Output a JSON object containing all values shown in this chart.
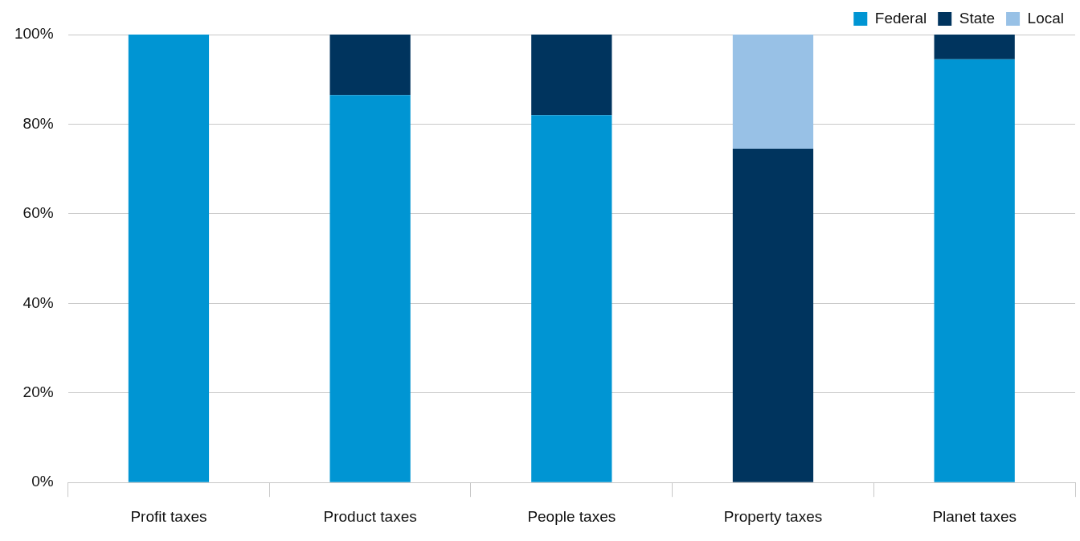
{
  "chart_data": {
    "type": "bar",
    "stacked": true,
    "categories": [
      "Profit taxes",
      "Product taxes",
      "People taxes",
      "Property taxes",
      "Planet taxes"
    ],
    "series": [
      {
        "name": "Federal",
        "color": "#0095d3",
        "values": [
          100,
          86.5,
          82,
          0,
          94.5
        ]
      },
      {
        "name": "State",
        "color": "#00345e",
        "values": [
          0,
          13.5,
          18,
          74.5,
          5.5
        ]
      },
      {
        "name": "Local",
        "color": "#98c1e6",
        "values": [
          0,
          0,
          0,
          25.5,
          0
        ]
      }
    ],
    "ylim": [
      0,
      100
    ],
    "yticks": [
      {
        "value": 0,
        "label": "0%"
      },
      {
        "value": 20,
        "label": "20%"
      },
      {
        "value": 40,
        "label": "40%"
      },
      {
        "value": 60,
        "label": "60%"
      },
      {
        "value": 80,
        "label": "80%"
      },
      {
        "value": 100,
        "label": "100%"
      }
    ],
    "grid": "y",
    "legend": "top right"
  }
}
